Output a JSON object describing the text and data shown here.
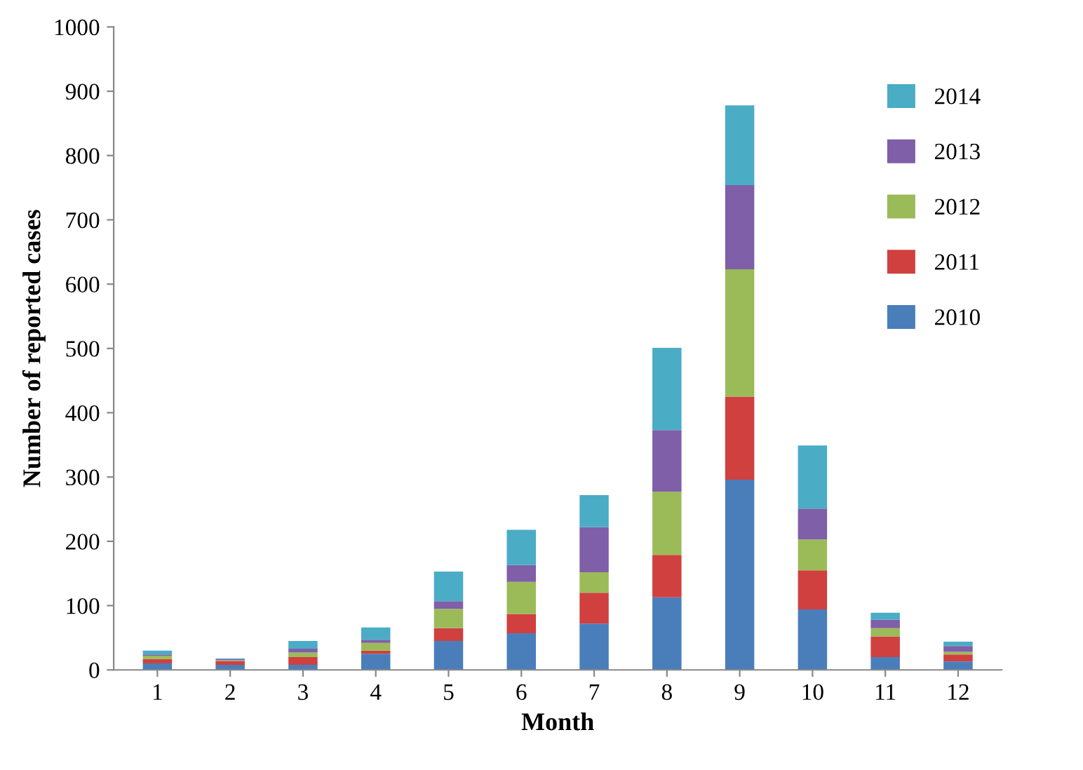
{
  "chart_data": {
    "type": "bar",
    "stacked": true,
    "xlabel": "Month",
    "ylabel": "Number of reported cases",
    "categories": [
      "1",
      "2",
      "3",
      "4",
      "5",
      "6",
      "7",
      "8",
      "9",
      "10",
      "11",
      "12"
    ],
    "series": [
      {
        "name": "2010",
        "color": "#4a7ebb",
        "values": [
          10,
          8,
          8,
          25,
          45,
          57,
          72,
          113,
          296,
          94,
          20,
          13
        ]
      },
      {
        "name": "2011",
        "color": "#d0403f",
        "values": [
          7,
          6,
          12,
          5,
          20,
          30,
          48,
          66,
          129,
          61,
          32,
          11
        ]
      },
      {
        "name": "2012",
        "color": "#9bbb59",
        "values": [
          5,
          1,
          7,
          12,
          30,
          50,
          32,
          98,
          198,
          48,
          13,
          4
        ]
      },
      {
        "name": "2013",
        "color": "#7f5fa8",
        "values": [
          2,
          2,
          6,
          5,
          12,
          26,
          70,
          96,
          131,
          48,
          13,
          9
        ]
      },
      {
        "name": "2014",
        "color": "#4bacc6",
        "values": [
          6,
          1,
          12,
          19,
          46,
          55,
          50,
          128,
          124,
          98,
          11,
          7
        ]
      }
    ],
    "ylim": [
      0,
      1000
    ],
    "yticks": [
      0,
      100,
      200,
      300,
      400,
      500,
      600,
      700,
      800,
      900,
      1000
    ],
    "grid": false,
    "legend": "right"
  }
}
